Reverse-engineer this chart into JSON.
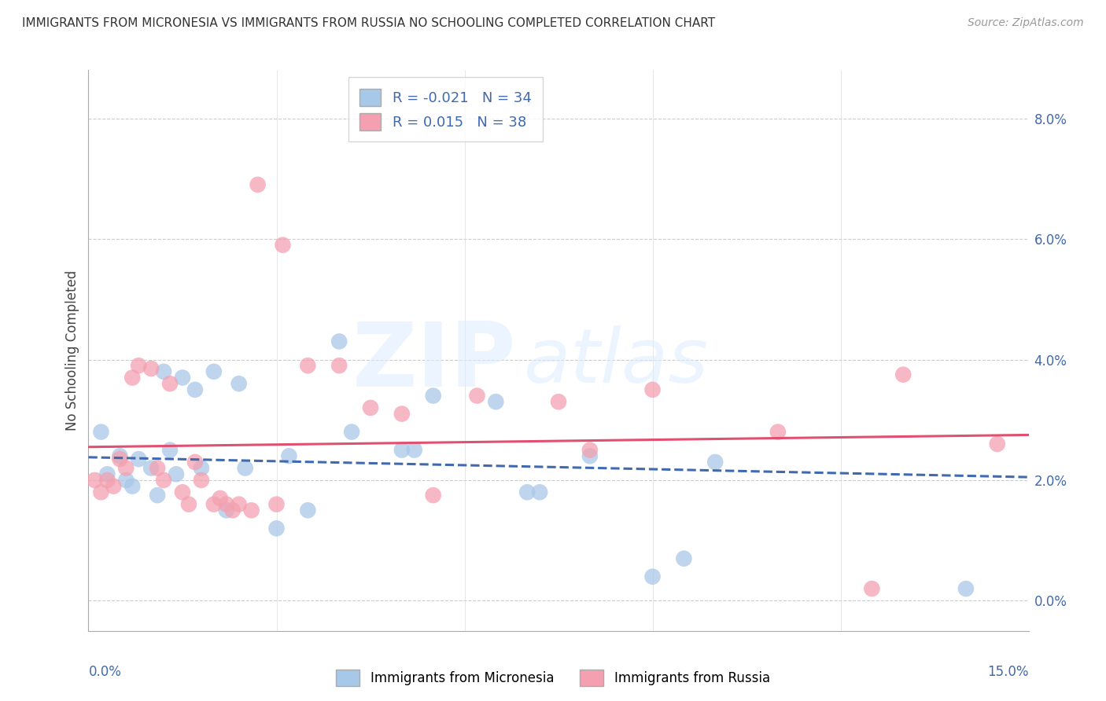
{
  "title": "IMMIGRANTS FROM MICRONESIA VS IMMIGRANTS FROM RUSSIA NO SCHOOLING COMPLETED CORRELATION CHART",
  "source": "Source: ZipAtlas.com",
  "ylabel": "No Schooling Completed",
  "xlim": [
    0.0,
    15.0
  ],
  "ylim": [
    -0.5,
    8.8
  ],
  "ytick_vals": [
    0.0,
    2.0,
    4.0,
    6.0,
    8.0
  ],
  "legend_blue_R": "-0.021",
  "legend_blue_N": "34",
  "legend_pink_R": "0.015",
  "legend_pink_N": "38",
  "blue_color": "#a8c8e8",
  "pink_color": "#f4a0b0",
  "blue_line_color": "#4169b0",
  "pink_line_color": "#e05070",
  "blue_scatter": [
    [
      0.2,
      2.8
    ],
    [
      0.3,
      2.1
    ],
    [
      0.5,
      2.4
    ],
    [
      0.6,
      2.0
    ],
    [
      0.7,
      1.9
    ],
    [
      0.8,
      2.35
    ],
    [
      1.0,
      2.2
    ],
    [
      1.1,
      1.75
    ],
    [
      1.2,
      3.8
    ],
    [
      1.3,
      2.5
    ],
    [
      1.4,
      2.1
    ],
    [
      1.5,
      3.7
    ],
    [
      1.7,
      3.5
    ],
    [
      1.8,
      2.2
    ],
    [
      2.0,
      3.8
    ],
    [
      2.2,
      1.5
    ],
    [
      2.4,
      3.6
    ],
    [
      2.5,
      2.2
    ],
    [
      3.0,
      1.2
    ],
    [
      3.2,
      2.4
    ],
    [
      3.5,
      1.5
    ],
    [
      4.0,
      4.3
    ],
    [
      4.2,
      2.8
    ],
    [
      5.0,
      2.5
    ],
    [
      5.2,
      2.5
    ],
    [
      5.5,
      3.4
    ],
    [
      6.5,
      3.3
    ],
    [
      7.0,
      1.8
    ],
    [
      7.2,
      1.8
    ],
    [
      8.0,
      2.4
    ],
    [
      9.0,
      0.4
    ],
    [
      9.5,
      0.7
    ],
    [
      10.0,
      2.3
    ],
    [
      14.0,
      0.2
    ]
  ],
  "pink_scatter": [
    [
      0.1,
      2.0
    ],
    [
      0.2,
      1.8
    ],
    [
      0.3,
      2.0
    ],
    [
      0.4,
      1.9
    ],
    [
      0.5,
      2.35
    ],
    [
      0.6,
      2.2
    ],
    [
      0.7,
      3.7
    ],
    [
      0.8,
      3.9
    ],
    [
      1.0,
      3.85
    ],
    [
      1.1,
      2.2
    ],
    [
      1.2,
      2.0
    ],
    [
      1.3,
      3.6
    ],
    [
      1.5,
      1.8
    ],
    [
      1.6,
      1.6
    ],
    [
      1.7,
      2.3
    ],
    [
      1.8,
      2.0
    ],
    [
      2.0,
      1.6
    ],
    [
      2.1,
      1.7
    ],
    [
      2.2,
      1.6
    ],
    [
      2.3,
      1.5
    ],
    [
      2.4,
      1.6
    ],
    [
      2.6,
      1.5
    ],
    [
      2.7,
      6.9
    ],
    [
      3.0,
      1.6
    ],
    [
      3.1,
      5.9
    ],
    [
      3.5,
      3.9
    ],
    [
      4.0,
      3.9
    ],
    [
      4.5,
      3.2
    ],
    [
      5.0,
      3.1
    ],
    [
      5.5,
      1.75
    ],
    [
      6.2,
      3.4
    ],
    [
      7.5,
      3.3
    ],
    [
      8.0,
      2.5
    ],
    [
      9.0,
      3.5
    ],
    [
      11.0,
      2.8
    ],
    [
      12.5,
      0.2
    ],
    [
      13.0,
      3.75
    ],
    [
      14.5,
      2.6
    ]
  ],
  "blue_trend": [
    0.0,
    2.38,
    15.0,
    2.05
  ],
  "pink_trend": [
    0.0,
    2.55,
    15.0,
    2.75
  ]
}
